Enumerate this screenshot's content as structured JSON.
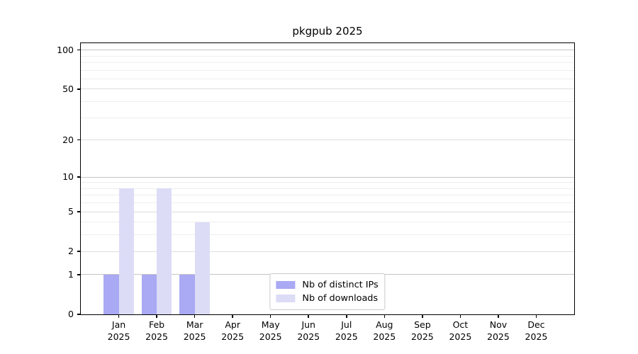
{
  "chart_data": {
    "type": "bar",
    "title": "pkgpub 2025",
    "yscale": "log1p",
    "ylim": [
      0,
      112.75
    ],
    "yticks": [
      0,
      1,
      2,
      5,
      10,
      20,
      50,
      100
    ],
    "gridlines": {
      "decade": [
        1,
        10,
        100
      ],
      "submajor": [
        2,
        5,
        20,
        50
      ],
      "minor": [
        3,
        4,
        6,
        7,
        8,
        9,
        30,
        40,
        60,
        70,
        80,
        90
      ]
    },
    "categories": [
      "Jan",
      "Feb",
      "Mar",
      "Apr",
      "May",
      "Jun",
      "Jul",
      "Aug",
      "Sep",
      "Oct",
      "Nov",
      "Dec"
    ],
    "year_label": "2025",
    "series": [
      {
        "name": "Nb of distinct IPs",
        "color": "#a9a9f4",
        "values": [
          1,
          1,
          1,
          0,
          0,
          0,
          0,
          0,
          0,
          0,
          0,
          0
        ]
      },
      {
        "name": "Nb of downloads",
        "color": "#dcdcf7",
        "values": [
          8,
          8,
          4,
          0,
          0,
          0,
          0,
          0,
          0,
          0,
          0,
          0
        ]
      }
    ],
    "legend_position": "lower center",
    "grid": true
  },
  "colors": {
    "grid_decade": "#c5c5c5",
    "grid_submajor": "#dedede",
    "grid_minor": "#eeeeee",
    "axis": "#000000",
    "background": "#ffffff"
  }
}
